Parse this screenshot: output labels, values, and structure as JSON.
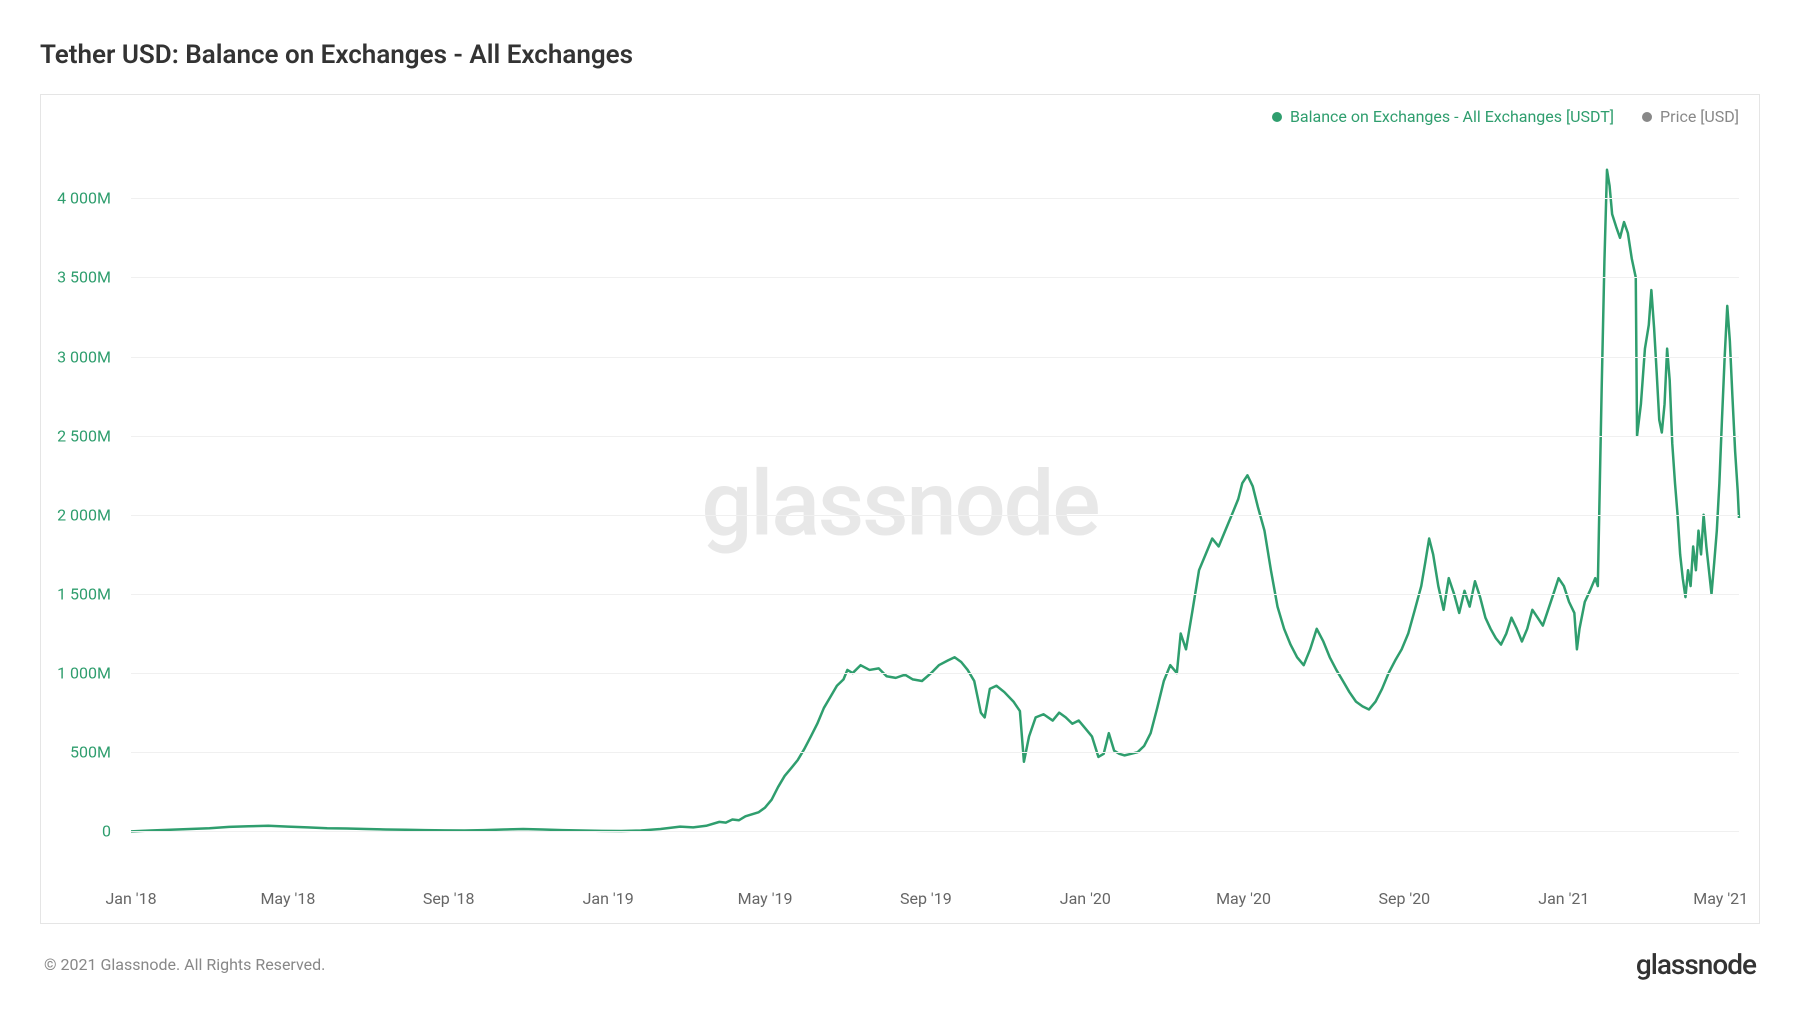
{
  "title": "Tether USD: Balance on Exchanges - All Exchanges",
  "watermark": "glassnode",
  "copyright": "© 2021 Glassnode. All Rights Reserved.",
  "brand": "glassnode",
  "legend": {
    "series1": {
      "label": "Balance on Exchanges - All Exchanges [USDT]",
      "color": "#2f9e6e"
    },
    "series2": {
      "label": "Price [USD]",
      "color": "#888888"
    }
  },
  "chart": {
    "type": "line",
    "line_color": "#2f9e6e",
    "line_width": 2.5,
    "background_color": "#ffffff",
    "grid_color": "#f0f0f0",
    "border_color": "#e5e5e5",
    "axis_label_color": "#666666",
    "y_label_color": "#2f9e6e",
    "y_axis": {
      "min": -200,
      "max": 4400,
      "ticks": [
        {
          "value": 0,
          "label": "0"
        },
        {
          "value": 500,
          "label": "500M"
        },
        {
          "value": 1000,
          "label": "1 000M"
        },
        {
          "value": 1500,
          "label": "1 500M"
        },
        {
          "value": 2000,
          "label": "2 000M"
        },
        {
          "value": 2500,
          "label": "2 500M"
        },
        {
          "value": 3000,
          "label": "3 000M"
        },
        {
          "value": 3500,
          "label": "3 500M"
        },
        {
          "value": 4000,
          "label": "4 000M"
        }
      ]
    },
    "x_axis": {
      "min": 0,
      "max": 1230,
      "ticks": [
        {
          "value": 0,
          "label": "Jan '18"
        },
        {
          "value": 120,
          "label": "May '18"
        },
        {
          "value": 243,
          "label": "Sep '18"
        },
        {
          "value": 365,
          "label": "Jan '19"
        },
        {
          "value": 485,
          "label": "May '19"
        },
        {
          "value": 608,
          "label": "Sep '19"
        },
        {
          "value": 730,
          "label": "Jan '20"
        },
        {
          "value": 851,
          "label": "May '20"
        },
        {
          "value": 974,
          "label": "Sep '20"
        },
        {
          "value": 1096,
          "label": "Jan '21"
        },
        {
          "value": 1216,
          "label": "May '21"
        }
      ]
    },
    "data": [
      [
        0,
        0
      ],
      [
        15,
        5
      ],
      [
        30,
        10
      ],
      [
        45,
        15
      ],
      [
        60,
        20
      ],
      [
        75,
        28
      ],
      [
        90,
        32
      ],
      [
        105,
        35
      ],
      [
        120,
        30
      ],
      [
        135,
        25
      ],
      [
        150,
        20
      ],
      [
        165,
        18
      ],
      [
        180,
        15
      ],
      [
        195,
        12
      ],
      [
        210,
        10
      ],
      [
        225,
        8
      ],
      [
        240,
        6
      ],
      [
        255,
        5
      ],
      [
        270,
        8
      ],
      [
        285,
        12
      ],
      [
        300,
        15
      ],
      [
        315,
        12
      ],
      [
        330,
        8
      ],
      [
        345,
        5
      ],
      [
        360,
        3
      ],
      [
        375,
        2
      ],
      [
        390,
        5
      ],
      [
        405,
        15
      ],
      [
        420,
        30
      ],
      [
        430,
        25
      ],
      [
        440,
        35
      ],
      [
        450,
        60
      ],
      [
        455,
        55
      ],
      [
        460,
        75
      ],
      [
        465,
        70
      ],
      [
        470,
        95
      ],
      [
        480,
        120
      ],
      [
        485,
        150
      ],
      [
        490,
        200
      ],
      [
        495,
        280
      ],
      [
        500,
        350
      ],
      [
        505,
        400
      ],
      [
        510,
        450
      ],
      [
        515,
        520
      ],
      [
        520,
        600
      ],
      [
        525,
        680
      ],
      [
        530,
        780
      ],
      [
        535,
        850
      ],
      [
        540,
        920
      ],
      [
        545,
        960
      ],
      [
        548,
        1020
      ],
      [
        552,
        1000
      ],
      [
        558,
        1050
      ],
      [
        565,
        1020
      ],
      [
        572,
        1030
      ],
      [
        578,
        980
      ],
      [
        585,
        970
      ],
      [
        592,
        990
      ],
      [
        598,
        960
      ],
      [
        605,
        950
      ],
      [
        612,
        1000
      ],
      [
        618,
        1050
      ],
      [
        625,
        1080
      ],
      [
        630,
        1100
      ],
      [
        635,
        1070
      ],
      [
        640,
        1020
      ],
      [
        645,
        950
      ],
      [
        650,
        750
      ],
      [
        653,
        720
      ],
      [
        657,
        900
      ],
      [
        662,
        920
      ],
      [
        668,
        880
      ],
      [
        675,
        820
      ],
      [
        680,
        760
      ],
      [
        683,
        440
      ],
      [
        687,
        600
      ],
      [
        692,
        720
      ],
      [
        698,
        740
      ],
      [
        705,
        700
      ],
      [
        710,
        750
      ],
      [
        715,
        720
      ],
      [
        720,
        680
      ],
      [
        725,
        700
      ],
      [
        730,
        650
      ],
      [
        735,
        600
      ],
      [
        740,
        470
      ],
      [
        744,
        490
      ],
      [
        748,
        620
      ],
      [
        752,
        510
      ],
      [
        756,
        490
      ],
      [
        760,
        480
      ],
      [
        765,
        490
      ],
      [
        770,
        500
      ],
      [
        775,
        540
      ],
      [
        780,
        620
      ],
      [
        785,
        780
      ],
      [
        790,
        950
      ],
      [
        795,
        1050
      ],
      [
        800,
        1000
      ],
      [
        803,
        1250
      ],
      [
        807,
        1150
      ],
      [
        812,
        1400
      ],
      [
        817,
        1650
      ],
      [
        822,
        1750
      ],
      [
        827,
        1850
      ],
      [
        832,
        1800
      ],
      [
        837,
        1900
      ],
      [
        842,
        2000
      ],
      [
        847,
        2100
      ],
      [
        850,
        2200
      ],
      [
        854,
        2250
      ],
      [
        858,
        2180
      ],
      [
        862,
        2050
      ],
      [
        867,
        1900
      ],
      [
        872,
        1650
      ],
      [
        877,
        1420
      ],
      [
        882,
        1280
      ],
      [
        887,
        1180
      ],
      [
        892,
        1100
      ],
      [
        897,
        1050
      ],
      [
        902,
        1150
      ],
      [
        907,
        1280
      ],
      [
        912,
        1200
      ],
      [
        917,
        1100
      ],
      [
        922,
        1020
      ],
      [
        927,
        950
      ],
      [
        932,
        880
      ],
      [
        937,
        820
      ],
      [
        942,
        790
      ],
      [
        947,
        770
      ],
      [
        952,
        820
      ],
      [
        957,
        900
      ],
      [
        962,
        1000
      ],
      [
        967,
        1080
      ],
      [
        972,
        1150
      ],
      [
        977,
        1250
      ],
      [
        982,
        1400
      ],
      [
        987,
        1550
      ],
      [
        990,
        1700
      ],
      [
        993,
        1850
      ],
      [
        996,
        1750
      ],
      [
        1000,
        1550
      ],
      [
        1004,
        1400
      ],
      [
        1008,
        1600
      ],
      [
        1012,
        1500
      ],
      [
        1016,
        1380
      ],
      [
        1020,
        1520
      ],
      [
        1024,
        1420
      ],
      [
        1028,
        1580
      ],
      [
        1032,
        1480
      ],
      [
        1036,
        1350
      ],
      [
        1040,
        1280
      ],
      [
        1044,
        1220
      ],
      [
        1048,
        1180
      ],
      [
        1052,
        1250
      ],
      [
        1056,
        1350
      ],
      [
        1060,
        1280
      ],
      [
        1064,
        1200
      ],
      [
        1068,
        1280
      ],
      [
        1072,
        1400
      ],
      [
        1076,
        1350
      ],
      [
        1080,
        1300
      ],
      [
        1084,
        1400
      ],
      [
        1088,
        1500
      ],
      [
        1092,
        1600
      ],
      [
        1096,
        1550
      ],
      [
        1100,
        1450
      ],
      [
        1104,
        1380
      ],
      [
        1106,
        1150
      ],
      [
        1108,
        1280
      ],
      [
        1112,
        1450
      ],
      [
        1116,
        1520
      ],
      [
        1120,
        1600
      ],
      [
        1122,
        1550
      ],
      [
        1125,
        2800
      ],
      [
        1127,
        3600
      ],
      [
        1129,
        4180
      ],
      [
        1131,
        4080
      ],
      [
        1133,
        3900
      ],
      [
        1136,
        3820
      ],
      [
        1139,
        3750
      ],
      [
        1142,
        3850
      ],
      [
        1145,
        3780
      ],
      [
        1148,
        3620
      ],
      [
        1151,
        3500
      ],
      [
        1152,
        2500
      ],
      [
        1155,
        2700
      ],
      [
        1158,
        3050
      ],
      [
        1161,
        3200
      ],
      [
        1163,
        3420
      ],
      [
        1165,
        3180
      ],
      [
        1167,
        2900
      ],
      [
        1169,
        2600
      ],
      [
        1171,
        2520
      ],
      [
        1173,
        2700
      ],
      [
        1175,
        3050
      ],
      [
        1177,
        2850
      ],
      [
        1179,
        2450
      ],
      [
        1181,
        2200
      ],
      [
        1183,
        2000
      ],
      [
        1185,
        1750
      ],
      [
        1187,
        1600
      ],
      [
        1189,
        1480
      ],
      [
        1191,
        1650
      ],
      [
        1193,
        1550
      ],
      [
        1195,
        1800
      ],
      [
        1197,
        1650
      ],
      [
        1199,
        1900
      ],
      [
        1201,
        1750
      ],
      [
        1203,
        2000
      ],
      [
        1205,
        1800
      ],
      [
        1207,
        1650
      ],
      [
        1209,
        1500
      ],
      [
        1211,
        1700
      ],
      [
        1213,
        1900
      ],
      [
        1215,
        2200
      ],
      [
        1217,
        2600
      ],
      [
        1219,
        3000
      ],
      [
        1221,
        3320
      ],
      [
        1223,
        3100
      ],
      [
        1225,
        2750
      ],
      [
        1227,
        2400
      ],
      [
        1229,
        2150
      ],
      [
        1230,
        1980
      ]
    ]
  }
}
